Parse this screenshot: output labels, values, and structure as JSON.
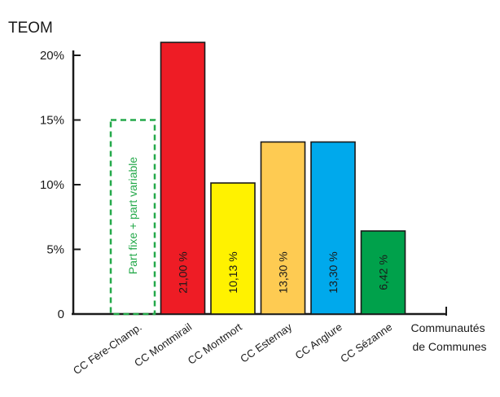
{
  "chart_data": {
    "type": "bar",
    "title": "TEOM",
    "xlabel": "Communautés de Communes",
    "xlabel_lines": [
      "Communautés",
      "de Communes"
    ],
    "ylabel": "",
    "ylim": [
      0,
      21
    ],
    "yticks": [
      {
        "value": 0,
        "label": "0"
      },
      {
        "value": 5,
        "label": "5%"
      },
      {
        "value": 10,
        "label": "10%"
      },
      {
        "value": 15,
        "label": "15%"
      },
      {
        "value": 20,
        "label": "20%"
      }
    ],
    "categories": [
      "CC Fère-Champ.",
      "CC Montmirail",
      "CC Montmort",
      "CC Esternay",
      "CC Anglure",
      "CC Sézanne"
    ],
    "values": [
      15,
      21.0,
      10.13,
      13.3,
      13.3,
      6.42
    ],
    "bar_labels": [
      "Part fixe + part variable",
      "21,00 %",
      "10,13 %",
      "13,30 %",
      "13,30 %",
      "6,42 %"
    ],
    "bar_colors": [
      "none",
      "#ee1c25",
      "#fff200",
      "#fecb52",
      "#00a9ec",
      "#00a14b"
    ],
    "bar_styles": [
      "dashed",
      "solid",
      "solid",
      "solid",
      "solid",
      "solid"
    ],
    "label_colors": [
      "#24a94a",
      "#1a1a1a",
      "#1a1a1a",
      "#1a1a1a",
      "#1a1a1a",
      "#1a1a1a"
    ]
  }
}
